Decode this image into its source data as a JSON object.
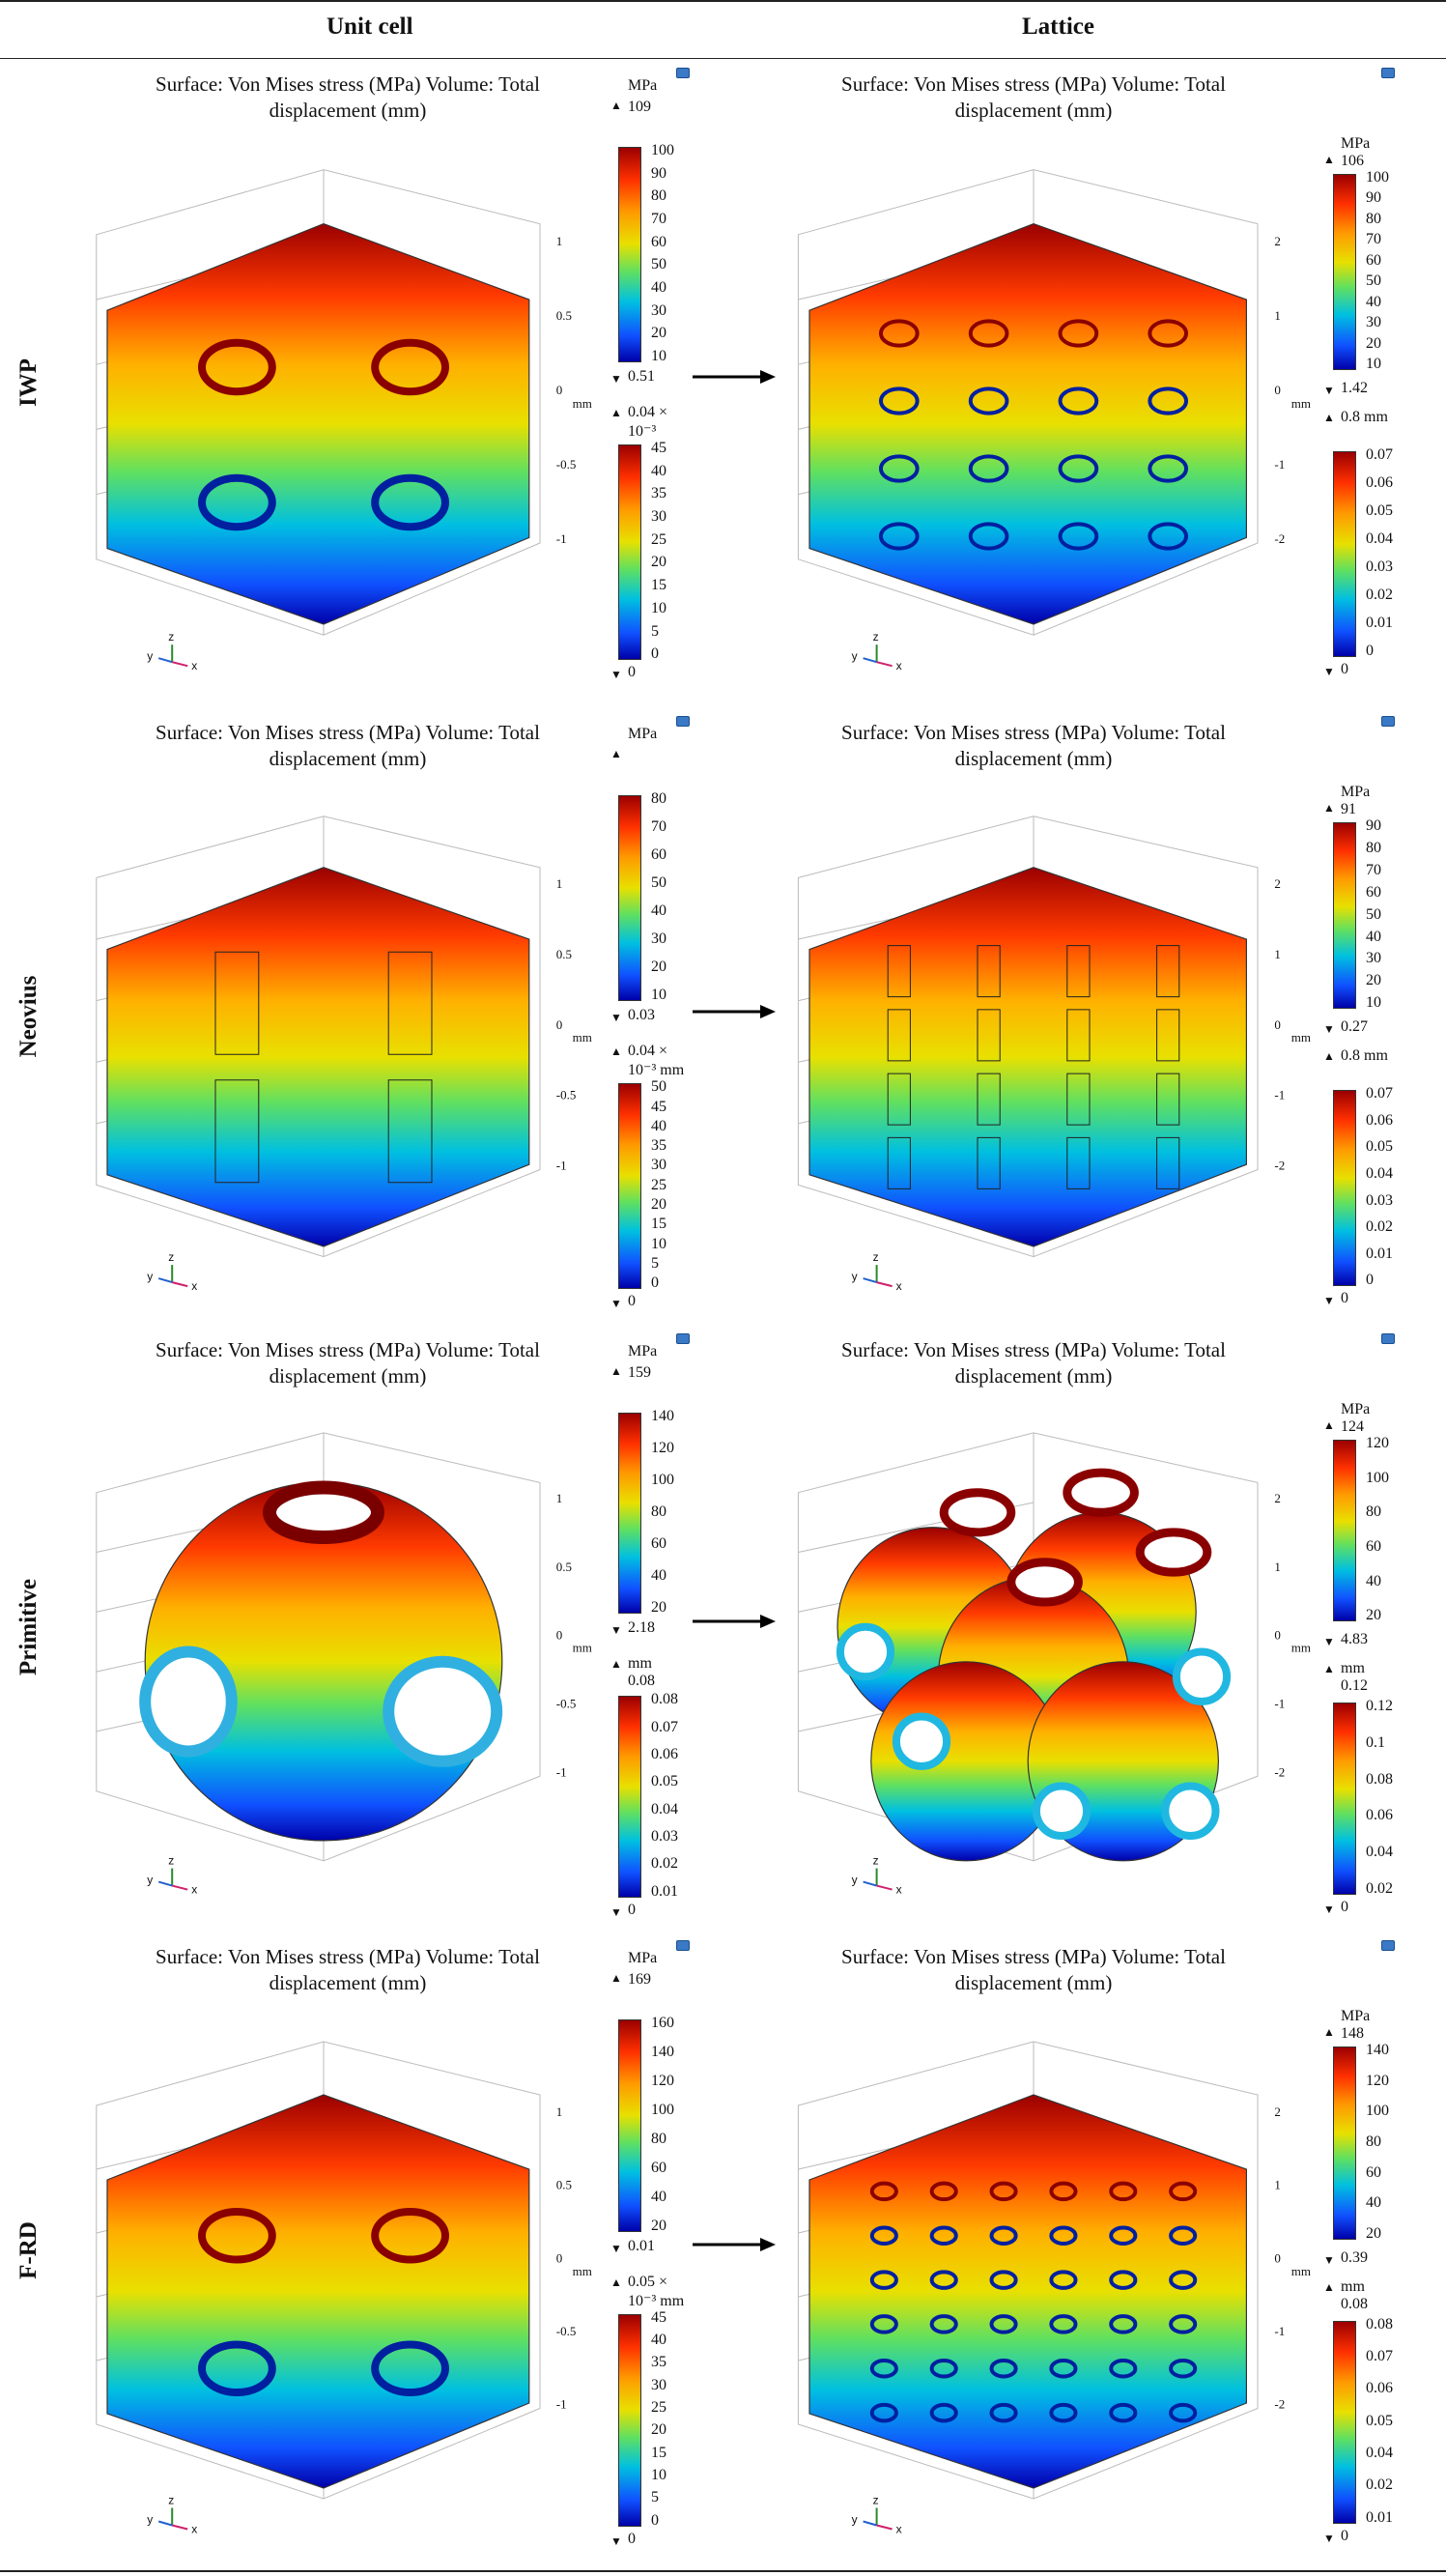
{
  "header": {
    "col_unit": "Unit cell",
    "col_lattice": "Lattice"
  },
  "plot_title_line1": "Surface: Von Mises stress (MPa)  Volume: Total",
  "plot_title_line2": "displacement (mm)",
  "axis_unit": "mm",
  "rows": [
    {
      "label": "IWP",
      "unit": {
        "stress_unit": "MPa",
        "stress_max": "109",
        "stress_min": "0.51",
        "stress_ticks": [
          "100",
          "90",
          "80",
          "70",
          "60",
          "50",
          "40",
          "30",
          "20",
          "10"
        ],
        "disp_max": "0.04 ×",
        "disp_max2": "10⁻³",
        "disp_min": "0",
        "disp_ticks": [
          "45",
          "40",
          "35",
          "30",
          "25",
          "20",
          "15",
          "10",
          "5",
          "0"
        ]
      },
      "lattice": {
        "stress_unit": "MPa",
        "stress_max": "106",
        "stress_min": "1.42",
        "stress_ticks": [
          "100",
          "90",
          "80",
          "70",
          "60",
          "50",
          "40",
          "30",
          "20",
          "10"
        ],
        "disp_max": "0.8 mm",
        "disp_min": "0",
        "disp_ticks": [
          "0.07",
          "0.06",
          "0.05",
          "0.04",
          "0.03",
          "0.02",
          "0.01",
          "0"
        ]
      }
    },
    {
      "label": "Neovius",
      "unit": {
        "stress_unit": "MPa",
        "stress_max": "",
        "stress_min": "0.03",
        "stress_ticks": [
          "80",
          "70",
          "60",
          "50",
          "40",
          "30",
          "20",
          "10"
        ],
        "disp_max": "0.04 ×",
        "disp_max2": "10⁻³ mm",
        "disp_min": "0",
        "disp_ticks": [
          "50",
          "45",
          "40",
          "35",
          "30",
          "25",
          "20",
          "15",
          "10",
          "5",
          "0"
        ]
      },
      "lattice": {
        "stress_unit": "MPa",
        "stress_max": "91",
        "stress_min": "0.27",
        "stress_ticks": [
          "90",
          "80",
          "70",
          "60",
          "50",
          "40",
          "30",
          "20",
          "10"
        ],
        "disp_max": "0.8 mm",
        "disp_min": "0",
        "disp_ticks": [
          "0.07",
          "0.06",
          "0.05",
          "0.04",
          "0.03",
          "0.02",
          "0.01",
          "0"
        ]
      }
    },
    {
      "label": "Primitive",
      "unit": {
        "stress_unit": "MPa",
        "stress_max": "159",
        "stress_min": "2.18",
        "stress_ticks": [
          "140",
          "120",
          "100",
          "80",
          "60",
          "40",
          "20"
        ],
        "disp_max": "mm",
        "disp_max2": "0.08",
        "disp_min": "0",
        "disp_ticks": [
          "0.08",
          "0.07",
          "0.06",
          "0.05",
          "0.04",
          "0.03",
          "0.02",
          "0.01"
        ]
      },
      "lattice": {
        "stress_unit": "MPa",
        "stress_max": "124",
        "stress_min": "4.83",
        "stress_ticks": [
          "120",
          "100",
          "80",
          "60",
          "40",
          "20"
        ],
        "disp_max": "mm",
        "disp_max2": "0.12",
        "disp_min": "0",
        "disp_ticks": [
          "0.12",
          "0.1",
          "0.08",
          "0.06",
          "0.04",
          "0.02"
        ]
      }
    },
    {
      "label": "F-RD",
      "unit": {
        "stress_unit": "MPa",
        "stress_max": "169",
        "stress_min": "0.01",
        "stress_ticks": [
          "160",
          "140",
          "120",
          "100",
          "80",
          "60",
          "40",
          "20"
        ],
        "disp_max": "0.05 ×",
        "disp_max2": "10⁻³ mm",
        "disp_min": "0",
        "disp_ticks": [
          "45",
          "40",
          "35",
          "30",
          "25",
          "20",
          "15",
          "10",
          "5",
          "0"
        ]
      },
      "lattice": {
        "stress_unit": "MPa",
        "stress_max": "148",
        "stress_min": "0.39",
        "stress_ticks": [
          "140",
          "120",
          "100",
          "80",
          "60",
          "40",
          "20"
        ],
        "disp_max": "mm",
        "disp_max2": "0.08",
        "disp_min": "0",
        "disp_ticks": [
          "0.08",
          "0.07",
          "0.06",
          "0.05",
          "0.04",
          "0.02",
          "0.01"
        ]
      }
    }
  ],
  "axis_ticks_unit": [
    "1",
    "0.5",
    "0",
    "-0.5",
    "-1"
  ],
  "axis_ticks_lattice": [
    "2",
    "1",
    "0",
    "-1",
    "-2"
  ],
  "triad": {
    "x": "x",
    "y": "y",
    "z": "z"
  },
  "colors": {
    "jet_top": "#9b0000",
    "jet_mid": "#e8e000",
    "jet_low": "#00c0e0",
    "jet_bottom": "#0000a8"
  }
}
